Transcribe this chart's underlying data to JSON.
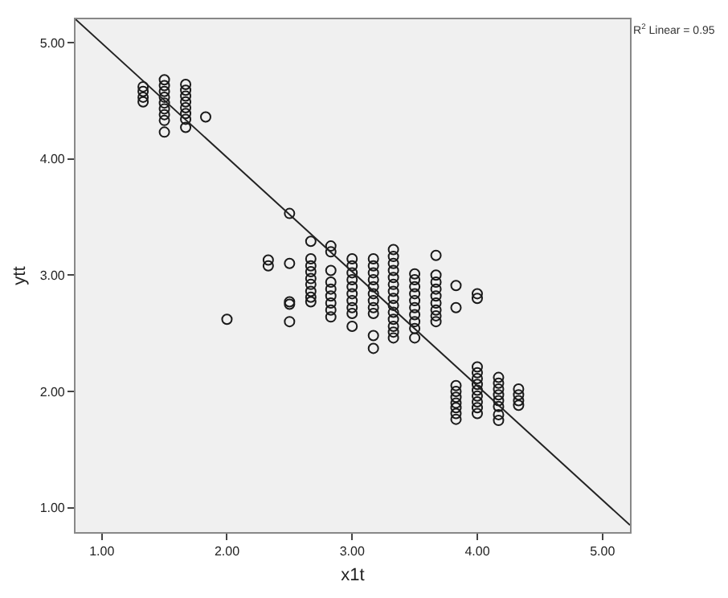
{
  "chart_data": {
    "type": "scatter",
    "xlabel": "x1t",
    "ylabel": "ytt",
    "xlim": [
      0.79,
      5.22
    ],
    "ylim": [
      0.79,
      5.2
    ],
    "xticks": [
      {
        "value": 1,
        "label": "1.00"
      },
      {
        "value": 2,
        "label": "2.00"
      },
      {
        "value": 3,
        "label": "3.00"
      },
      {
        "value": 4,
        "label": "4.00"
      },
      {
        "value": 5,
        "label": "5.00"
      }
    ],
    "yticks": [
      {
        "value": 1,
        "label": "1.00"
      },
      {
        "value": 2,
        "label": "2.00"
      },
      {
        "value": 3,
        "label": "3.00"
      },
      {
        "value": 4,
        "label": "4.00"
      },
      {
        "value": 5,
        "label": "5.00"
      }
    ],
    "grid": false,
    "annotations": [
      "R$^{2}$ Linear = 0.95"
    ],
    "series": [
      {
        "marker": "circle",
        "color": "#1a1a1a",
        "x": [
          1.33,
          1.33,
          1.33,
          1.33,
          1.5,
          1.5,
          1.5,
          1.5,
          1.5,
          1.5,
          1.5,
          1.5,
          1.5,
          1.67,
          1.67,
          1.67,
          1.67,
          1.67,
          1.67,
          1.67,
          1.67,
          1.83,
          2.0,
          2.33,
          2.33,
          2.5,
          2.5,
          2.5,
          2.5,
          2.5,
          2.67,
          2.67,
          2.67,
          2.67,
          2.67,
          2.67,
          2.67,
          2.67,
          2.67,
          2.83,
          2.83,
          2.83,
          2.83,
          2.83,
          2.83,
          2.83,
          2.83,
          2.83,
          3.0,
          3.0,
          3.0,
          3.0,
          3.0,
          3.0,
          3.0,
          3.0,
          3.0,
          3.0,
          3.17,
          3.17,
          3.17,
          3.17,
          3.17,
          3.17,
          3.17,
          3.17,
          3.17,
          3.17,
          3.17,
          3.33,
          3.33,
          3.33,
          3.33,
          3.33,
          3.33,
          3.33,
          3.33,
          3.33,
          3.33,
          3.33,
          3.33,
          3.33,
          3.33,
          3.5,
          3.5,
          3.5,
          3.5,
          3.5,
          3.5,
          3.5,
          3.5,
          3.5,
          3.5,
          3.67,
          3.67,
          3.67,
          3.67,
          3.67,
          3.67,
          3.67,
          3.67,
          3.67,
          3.83,
          3.83,
          3.83,
          3.83,
          3.83,
          3.83,
          3.83,
          3.83,
          3.83,
          4.0,
          4.0,
          4.0,
          4.0,
          4.0,
          4.0,
          4.0,
          4.0,
          4.0,
          4.0,
          4.0,
          4.17,
          4.17,
          4.17,
          4.17,
          4.17,
          4.17,
          4.17,
          4.17,
          4.33,
          4.33,
          4.33,
          4.33
        ],
        "values": [
          4.62,
          4.58,
          4.53,
          4.49,
          4.68,
          4.63,
          4.58,
          4.53,
          4.48,
          4.43,
          4.38,
          4.33,
          4.23,
          4.64,
          4.59,
          4.54,
          4.49,
          4.44,
          4.39,
          4.34,
          4.27,
          4.36,
          2.62,
          3.13,
          3.08,
          3.53,
          3.1,
          2.77,
          2.75,
          2.6,
          3.29,
          3.14,
          3.08,
          3.03,
          2.97,
          2.92,
          2.86,
          2.81,
          2.77,
          3.25,
          3.2,
          3.04,
          2.94,
          2.88,
          2.82,
          2.76,
          2.7,
          2.64,
          3.14,
          3.08,
          3.02,
          2.96,
          2.9,
          2.84,
          2.78,
          2.72,
          2.67,
          2.56,
          3.14,
          3.08,
          3.02,
          2.96,
          2.9,
          2.84,
          2.78,
          2.72,
          2.67,
          2.48,
          2.37,
          3.22,
          3.16,
          3.1,
          3.04,
          2.98,
          2.92,
          2.86,
          2.8,
          2.74,
          2.68,
          2.62,
          2.56,
          2.51,
          2.46,
          3.01,
          2.96,
          2.9,
          2.84,
          2.78,
          2.72,
          2.66,
          2.6,
          2.54,
          2.46,
          3.17,
          3.0,
          2.94,
          2.88,
          2.82,
          2.76,
          2.7,
          2.65,
          2.6,
          2.91,
          2.72,
          2.05,
          2.0,
          1.95,
          1.9,
          1.86,
          1.81,
          1.76,
          2.84,
          2.8,
          2.21,
          2.16,
          2.11,
          2.06,
          2.01,
          1.96,
          1.91,
          1.86,
          1.81,
          2.12,
          2.07,
          2.02,
          1.97,
          1.92,
          1.87,
          1.8,
          1.75,
          2.02,
          1.97,
          1.92,
          1.88
        ]
      },
      {
        "type": "line",
        "marker": "none",
        "color": "#222222",
        "x": [
          0.79,
          5.22
        ],
        "values": [
          5.2,
          0.85
        ]
      }
    ]
  }
}
